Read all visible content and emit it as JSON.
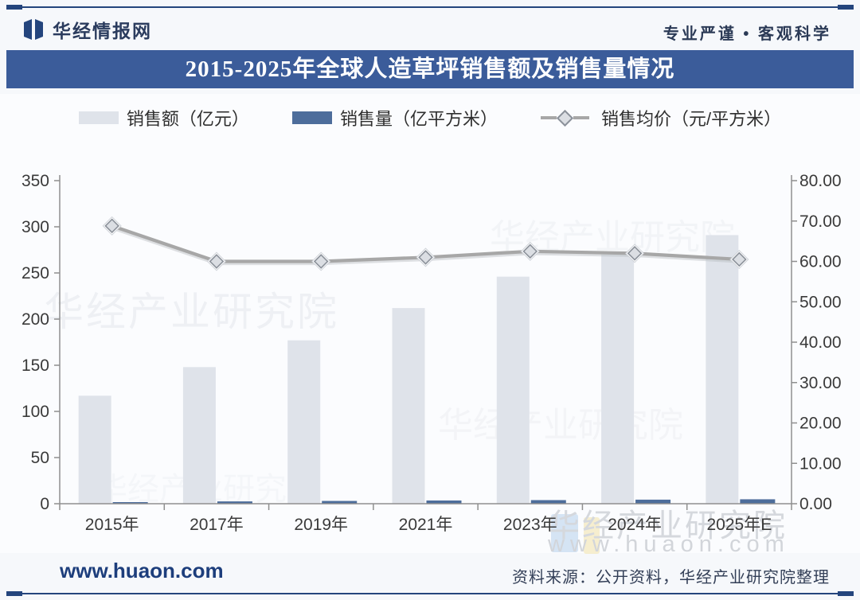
{
  "header": {
    "brand": "华经情报网",
    "tagline": "专业严谨 • 客观科学"
  },
  "title_banner": {
    "text": "2015-2025年全球人造草坪销售额及销售量情况"
  },
  "legend": {
    "items": [
      {
        "label": "销售额（亿元）",
        "marker": "bar",
        "color": "#dfe3ea"
      },
      {
        "label": "销售量（亿平方米）",
        "marker": "bar",
        "color": "#4d6d9b"
      },
      {
        "label": "销售均价（元/平方米）",
        "marker": "line-diamond",
        "color": "#a7a7a7"
      }
    ]
  },
  "chart_data": {
    "type": "combo",
    "title": "2015-2025年全球人造草坪销售额及销售量情况",
    "categories": [
      "2015年",
      "2017年",
      "2019年",
      "2021年",
      "2023年",
      "2024年",
      "2025年E"
    ],
    "series": [
      {
        "name": "销售额（亿元）",
        "type": "bar",
        "axis": "left",
        "unit": "亿元",
        "color": "#dfe3ea",
        "values": [
          117,
          148,
          177,
          212,
          246,
          270,
          291
        ]
      },
      {
        "name": "销售量（亿平方米）",
        "type": "bar",
        "axis": "left",
        "unit": "亿平方米",
        "color": "#4d6d9b",
        "values": [
          1.7,
          2.5,
          3.0,
          3.5,
          3.9,
          4.4,
          4.8
        ]
      },
      {
        "name": "销售均价（元/平方米）",
        "type": "line",
        "axis": "right",
        "unit": "元/平方米",
        "color": "#a7a7a7",
        "marker": "diamond",
        "values": [
          68.8,
          60.0,
          60.0,
          61.0,
          62.5,
          62.0,
          60.5
        ]
      }
    ],
    "left_axis": {
      "min": 0,
      "max": 350,
      "ticks": [
        350,
        300,
        250,
        200,
        150,
        100,
        50,
        0
      ]
    },
    "right_axis": {
      "min": 0,
      "max": 80,
      "ticks": [
        "80.00",
        "70.00",
        "60.00",
        "50.00",
        "40.00",
        "30.00",
        "20.00",
        "10.00",
        "0.00"
      ]
    },
    "grid": false,
    "legend_position": "top"
  },
  "watermarks": {
    "ghost_text": "华经产业研究院",
    "brand_text": "华经产业研究院",
    "site_text": "www.huaon.com"
  },
  "footer": {
    "site": "www.huaon.com",
    "source": "资料来源：公开资料，华经产业研究院整理"
  },
  "colors": {
    "banner_bg": "#3b5c9a",
    "rule": "#24457d",
    "sales_bar": "#dfe3ea",
    "volume_bar": "#4d6d9b",
    "price_line": "#a7a7a7",
    "axis": "#8f8f8f",
    "tick_label": "#3a3a3a"
  }
}
